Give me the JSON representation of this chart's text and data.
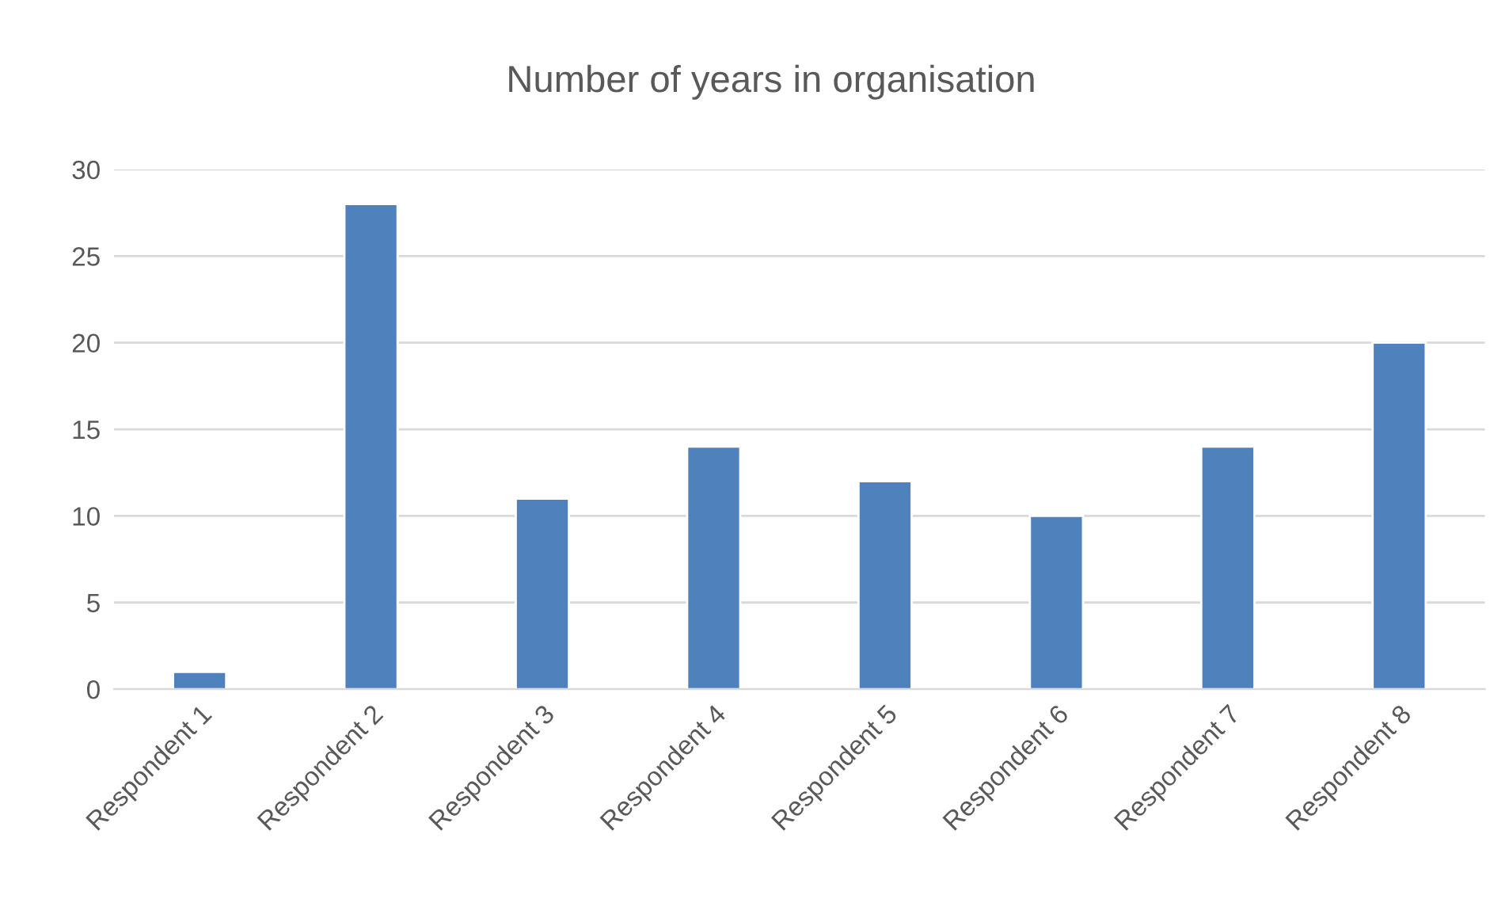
{
  "chart_data": {
    "type": "bar",
    "title": "Number of years in organisation",
    "categories": [
      "Respondent 1",
      "Respondent 2",
      "Respondent 3",
      "Respondent 4",
      "Respondent 5",
      "Respondent 6",
      "Respondent 7",
      "Respondent 8"
    ],
    "values": [
      1,
      28,
      11,
      14,
      12,
      10,
      14,
      20
    ],
    "color": "#4f81bd",
    "ylim": [
      0,
      30
    ],
    "yticks": [
      0,
      5,
      10,
      15,
      20,
      25,
      30
    ],
    "grid": "y",
    "legend": false
  }
}
